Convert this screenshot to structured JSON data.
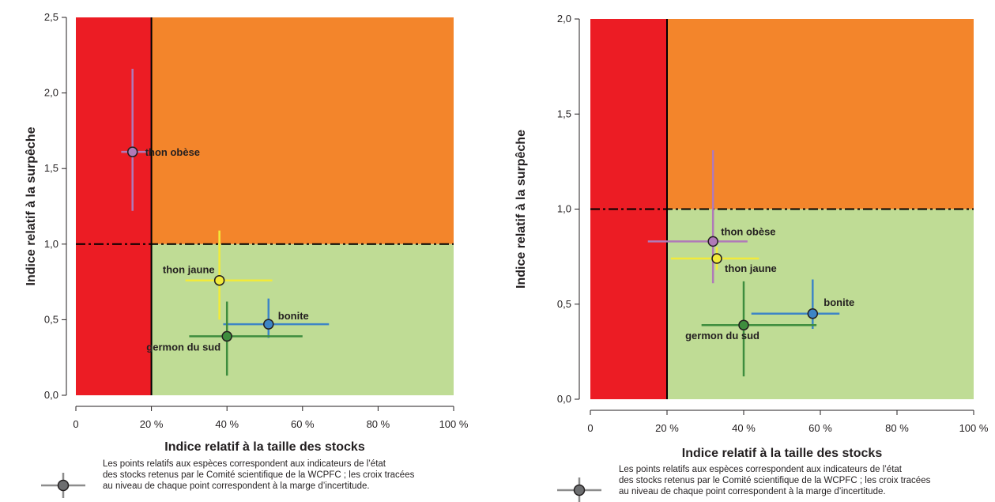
{
  "colors": {
    "red_zone": "#ec1c24",
    "orange_zone": "#f3852b",
    "green_zone": "#bfdc95",
    "axis": "#231f20",
    "legend_cross": "#8c8c8c",
    "legend_point": "#6d6e70"
  },
  "legend": {
    "text_lines": [
      "Les points relatifs aux espèces correspondent aux indicateurs de l’état",
      "des stocks retenus par le Comité scientifique de la WCPFC ; les croix tracées",
      "au niveau de chaque point correspondent à la marge d’incertitude."
    ]
  },
  "chart_data": [
    {
      "type": "scatter",
      "xlabel": "Indice relatif à la taille des stocks",
      "ylabel": "Indice relatif à la surpêche",
      "xlim": [
        0,
        100
      ],
      "ylim": [
        0,
        2.5
      ],
      "x_ticks": [
        "0",
        "20 %",
        "40 %",
        "60 %",
        "80 %",
        "100 %"
      ],
      "y_ticks": [
        "0,0",
        "0,5",
        "1,0",
        "1,5",
        "2,0",
        "2,5"
      ],
      "reference_lines": {
        "x": 20,
        "y": 1.0
      },
      "series": [
        {
          "name": "thon obèse",
          "color": "#b07ab8",
          "x": 15,
          "y": 1.61,
          "x_range": [
            12,
            19
          ],
          "y_range": [
            1.22,
            2.16
          ]
        },
        {
          "name": "thon jaune",
          "color": "#f2ea3a",
          "x": 38,
          "y": 0.76,
          "x_range": [
            29,
            52
          ],
          "y_range": [
            0.5,
            1.09
          ]
        },
        {
          "name": "bonite",
          "color": "#3d85c6",
          "x": 51,
          "y": 0.47,
          "x_range": [
            39,
            67
          ],
          "y_range": [
            0.38,
            0.64
          ]
        },
        {
          "name": "germon du sud",
          "color": "#3e8d3e",
          "x": 40,
          "y": 0.39,
          "x_range": [
            30,
            60
          ],
          "y_range": [
            0.13,
            0.62
          ]
        }
      ]
    },
    {
      "type": "scatter",
      "xlabel": "Indice relatif à la taille des stocks",
      "ylabel": "Indice relatif à la surpêche",
      "xlim": [
        0,
        100
      ],
      "ylim": [
        0,
        2.0
      ],
      "x_ticks": [
        "0",
        "20 %",
        "40 %",
        "60 %",
        "80 %",
        "100 %"
      ],
      "y_ticks": [
        "0,0",
        "0,5",
        "1,0",
        "1,5",
        "2,0"
      ],
      "reference_lines": {
        "x": 20,
        "y": 1.0
      },
      "series": [
        {
          "name": "thon obèse",
          "color": "#b07ab8",
          "x": 32,
          "y": 0.83,
          "x_range": [
            15,
            41
          ],
          "y_range": [
            0.61,
            1.31
          ]
        },
        {
          "name": "thon jaune",
          "color": "#f2ea3a",
          "x": 33,
          "y": 0.74,
          "x_range": [
            21,
            44
          ],
          "y_range": [
            0.68,
            0.8
          ]
        },
        {
          "name": "bonite",
          "color": "#3d85c6",
          "x": 58,
          "y": 0.45,
          "x_range": [
            42,
            65
          ],
          "y_range": [
            0.37,
            0.63
          ]
        },
        {
          "name": "germon du sud",
          "color": "#3e8d3e",
          "x": 40,
          "y": 0.39,
          "x_range": [
            29,
            59
          ],
          "y_range": [
            0.12,
            0.62
          ]
        }
      ]
    }
  ]
}
